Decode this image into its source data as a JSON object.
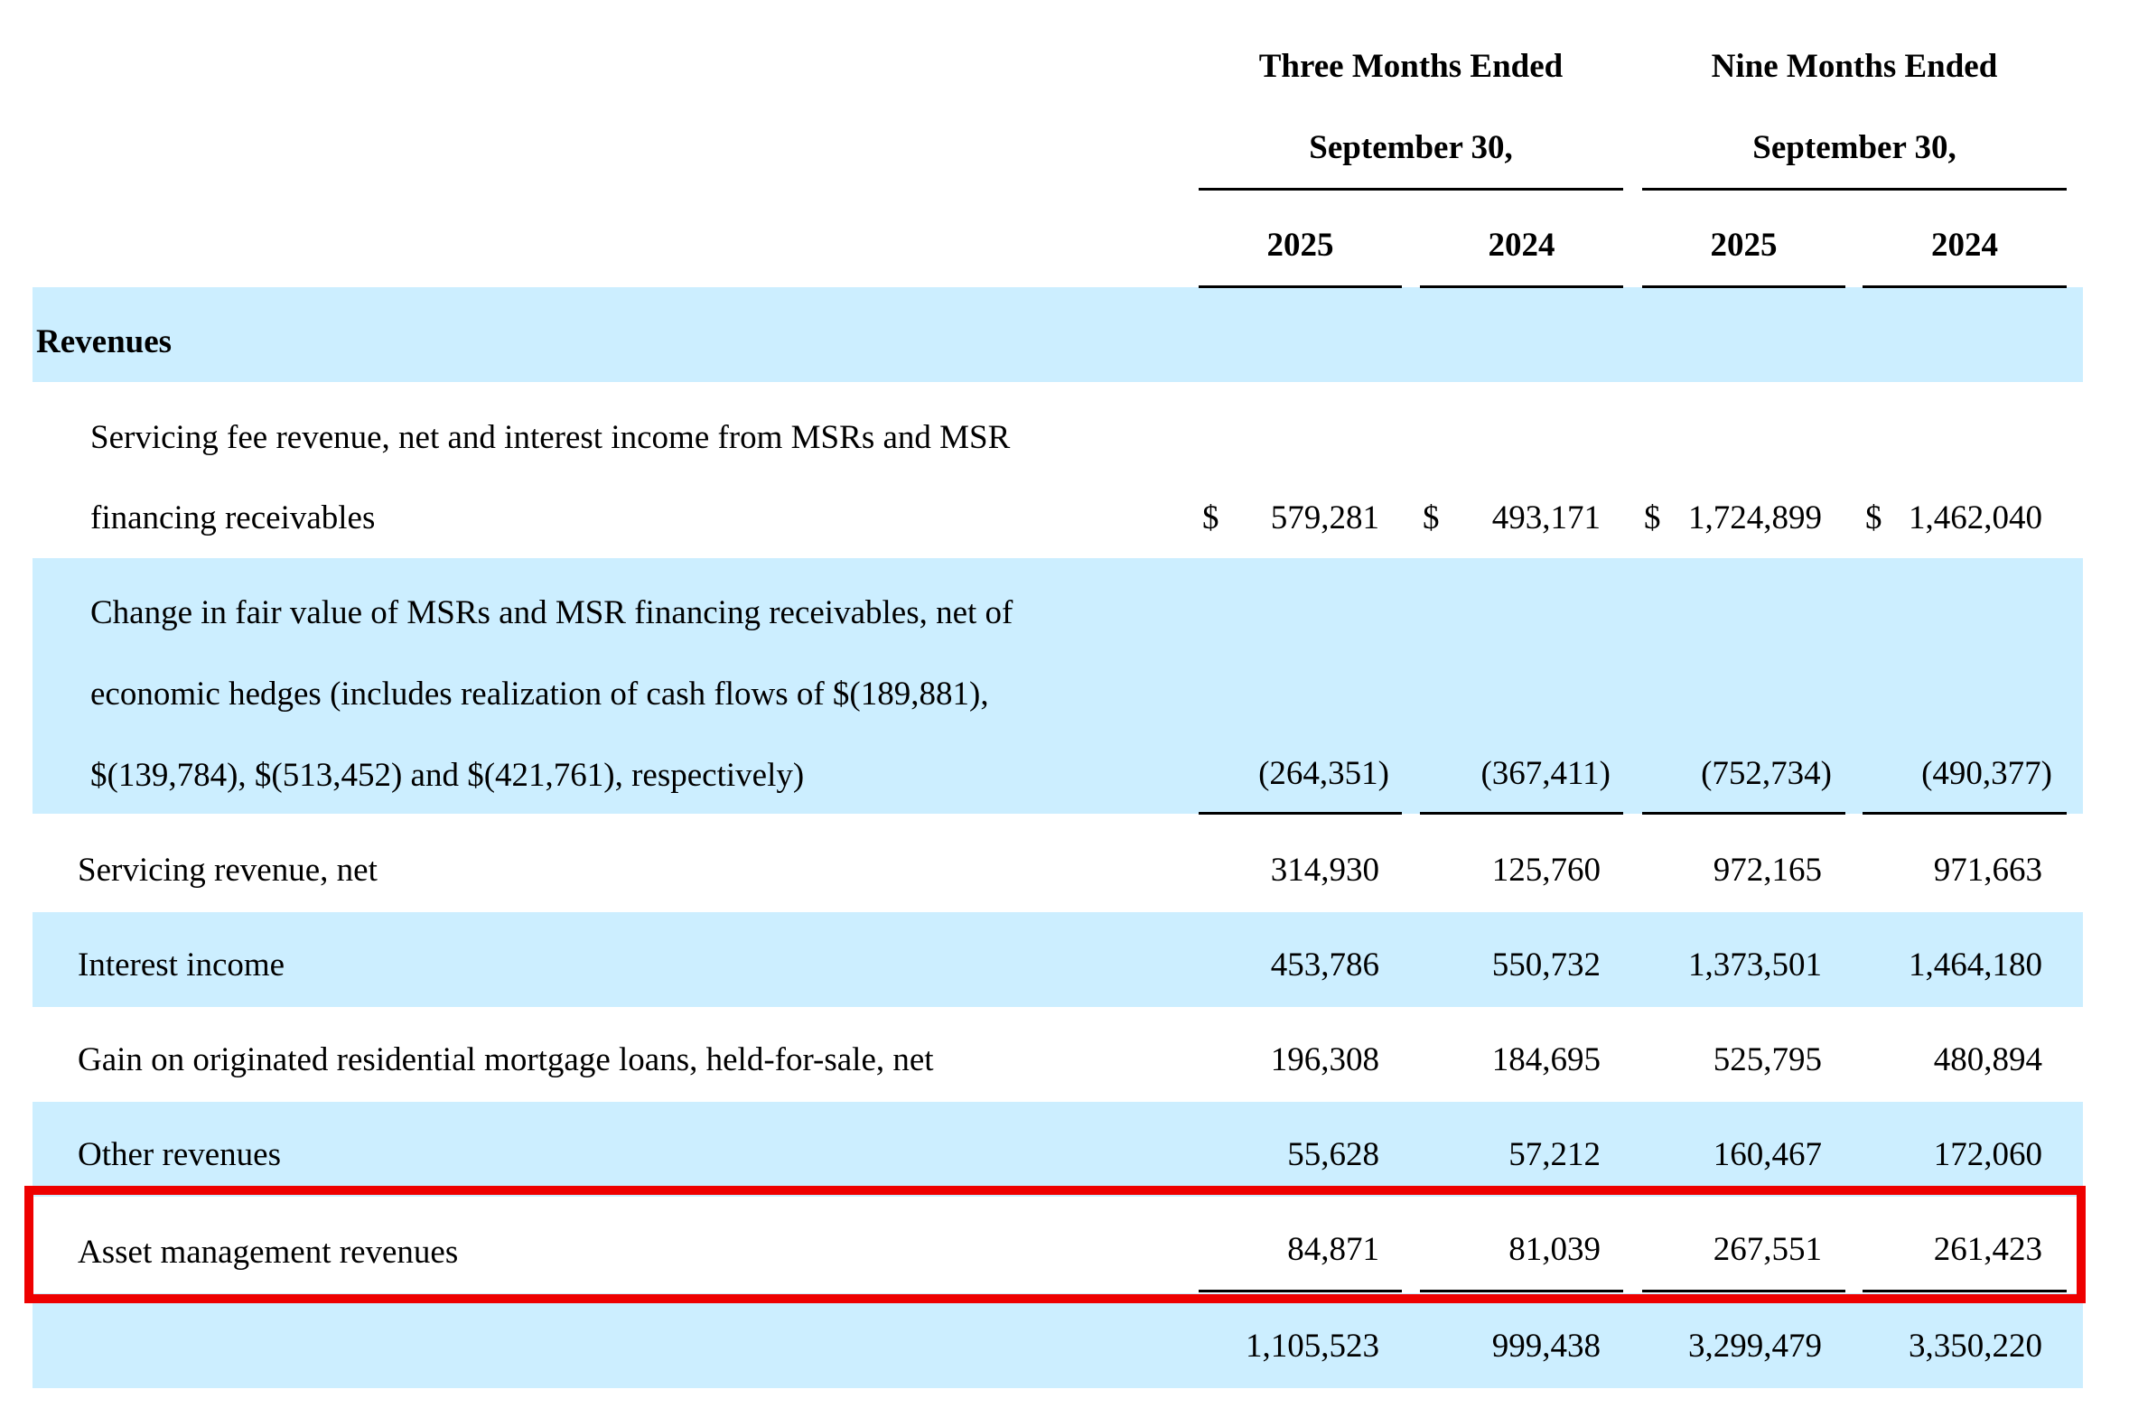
{
  "header": {
    "three_months_line1": "Three Months Ended",
    "three_months_line2": "September 30,",
    "nine_months_line1": "Nine Months Ended",
    "nine_months_line2": "September 30,",
    "years": [
      "2025",
      "2024",
      "2025",
      "2024"
    ]
  },
  "section": {
    "revenues": "Revenues"
  },
  "rows": {
    "servicing_fee": {
      "label_line1": "Servicing fee revenue, net and interest income from MSRs and MSR",
      "label_line2": "financing receivables",
      "currency": "$",
      "values": [
        "579,281",
        "493,171",
        "1,724,899",
        "1,462,040"
      ]
    },
    "change_fv": {
      "label_line1": "Change in fair value of MSRs and MSR financing receivables, net of",
      "label_line2": "economic hedges (includes realization of cash flows of $(189,881),",
      "label_line3": "$(139,784), $(513,452) and $(421,761), respectively)",
      "values": [
        "(264,351)",
        "(367,411)",
        "(752,734)",
        "(490,377)"
      ]
    },
    "servicing_revenue_net": {
      "label": "Servicing revenue, net",
      "values": [
        "314,930",
        "125,760",
        "972,165",
        "971,663"
      ]
    },
    "interest_income": {
      "label": "Interest income",
      "values": [
        "453,786",
        "550,732",
        "1,373,501",
        "1,464,180"
      ]
    },
    "gain_originated": {
      "label": "Gain on originated residential mortgage loans, held-for-sale, net",
      "values": [
        "196,308",
        "184,695",
        "525,795",
        "480,894"
      ]
    },
    "other_revenues": {
      "label": "Other revenues",
      "values": [
        "55,628",
        "57,212",
        "160,467",
        "172,060"
      ]
    },
    "asset_management": {
      "label": "Asset management revenues",
      "values": [
        "84,871",
        "81,039",
        "267,551",
        "261,423"
      ]
    },
    "total": {
      "label": "",
      "values": [
        "1,105,523",
        "999,438",
        "3,299,479",
        "3,350,220"
      ]
    }
  },
  "colors": {
    "band": "#cceeff",
    "highlight": "#ee0000"
  }
}
